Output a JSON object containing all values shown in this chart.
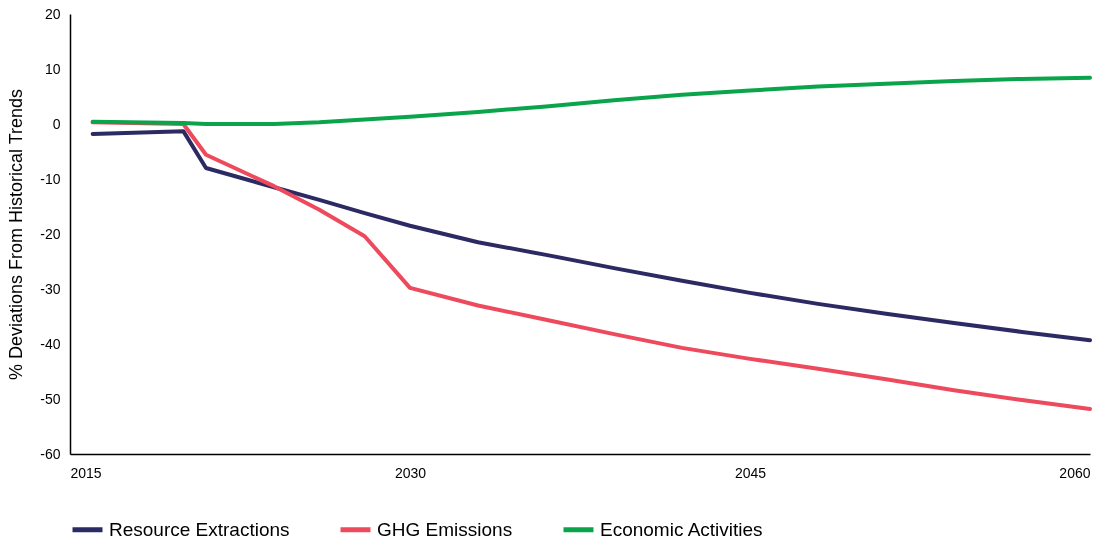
{
  "chart_data": {
    "type": "line",
    "ylabel": "% Deviations From Historical Trends",
    "x": [
      2016,
      2020,
      2021,
      2024,
      2026,
      2028,
      2030,
      2033,
      2036,
      2039,
      2042,
      2045,
      2048,
      2051,
      2054,
      2057,
      2060
    ],
    "series": [
      {
        "name": "Resource Extractions",
        "color": "#2b2a63",
        "values": [
          -1.8,
          -1.3,
          -8,
          -11.5,
          -13.8,
          -16.2,
          -18.5,
          -21.5,
          -23.8,
          -26.2,
          -28.5,
          -30.7,
          -32.7,
          -34.5,
          -36.2,
          -37.8,
          -39.3
        ]
      },
      {
        "name": "GHG Emissions",
        "color": "#ee4a5e",
        "values": [
          0.3,
          0,
          -5.6,
          -11.3,
          -15.6,
          -20.4,
          -29.8,
          -33,
          -35.6,
          -38.2,
          -40.7,
          -42.7,
          -44.5,
          -46.4,
          -48.4,
          -50.2,
          -51.8
        ]
      },
      {
        "name": "Economic Activities",
        "color": "#0aa54a",
        "values": [
          0.4,
          0.2,
          0,
          0,
          0.3,
          0.8,
          1.3,
          2.2,
          3.2,
          4.3,
          5.3,
          6.1,
          6.8,
          7.3,
          7.8,
          8.2,
          8.4
        ]
      }
    ],
    "xlim": [
      2015,
      2060
    ],
    "xticks": [
      2015,
      2030,
      2045,
      2060
    ],
    "ylim": [
      -60,
      20
    ],
    "yticks": [
      -60,
      -50,
      -40,
      -30,
      -20,
      -10,
      0,
      10,
      20
    ],
    "grid": false,
    "legend": "bottom",
    "marker": "none",
    "line_style": "solid"
  }
}
